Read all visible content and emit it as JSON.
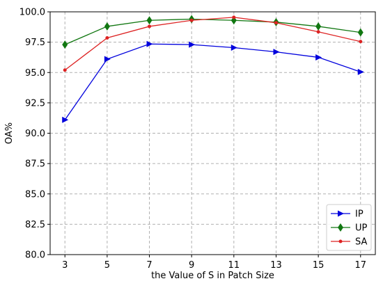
{
  "chart_data": {
    "type": "line",
    "title": "",
    "xlabel": "the Value of S in Patch Size",
    "ylabel": "OA%",
    "x": [
      3,
      5,
      7,
      9,
      11,
      13,
      15,
      17
    ],
    "xlim": [
      2.3,
      17.7
    ],
    "ylim": [
      80.0,
      100.0
    ],
    "xticks": [
      "3",
      "5",
      "7",
      "9",
      "11",
      "13",
      "15",
      "17"
    ],
    "yticks": [
      "80.0",
      "82.5",
      "85.0",
      "87.5",
      "90.0",
      "92.5",
      "95.0",
      "97.5",
      "100.0"
    ],
    "grid": true,
    "legend_position": "lower-right",
    "series": [
      {
        "name": "IP",
        "color": "#0000dd",
        "marker": "triangle-right",
        "values": [
          91.1,
          96.1,
          97.35,
          97.3,
          97.05,
          96.7,
          96.25,
          95.05
        ]
      },
      {
        "name": "UP",
        "color": "#117711",
        "marker": "diamond",
        "values": [
          97.3,
          98.8,
          99.3,
          99.4,
          99.3,
          99.15,
          98.8,
          98.3
        ]
      },
      {
        "name": "SA",
        "color": "#dd2222",
        "marker": "circle",
        "values": [
          95.2,
          97.85,
          98.8,
          99.3,
          99.55,
          99.1,
          98.35,
          97.55
        ]
      }
    ]
  }
}
